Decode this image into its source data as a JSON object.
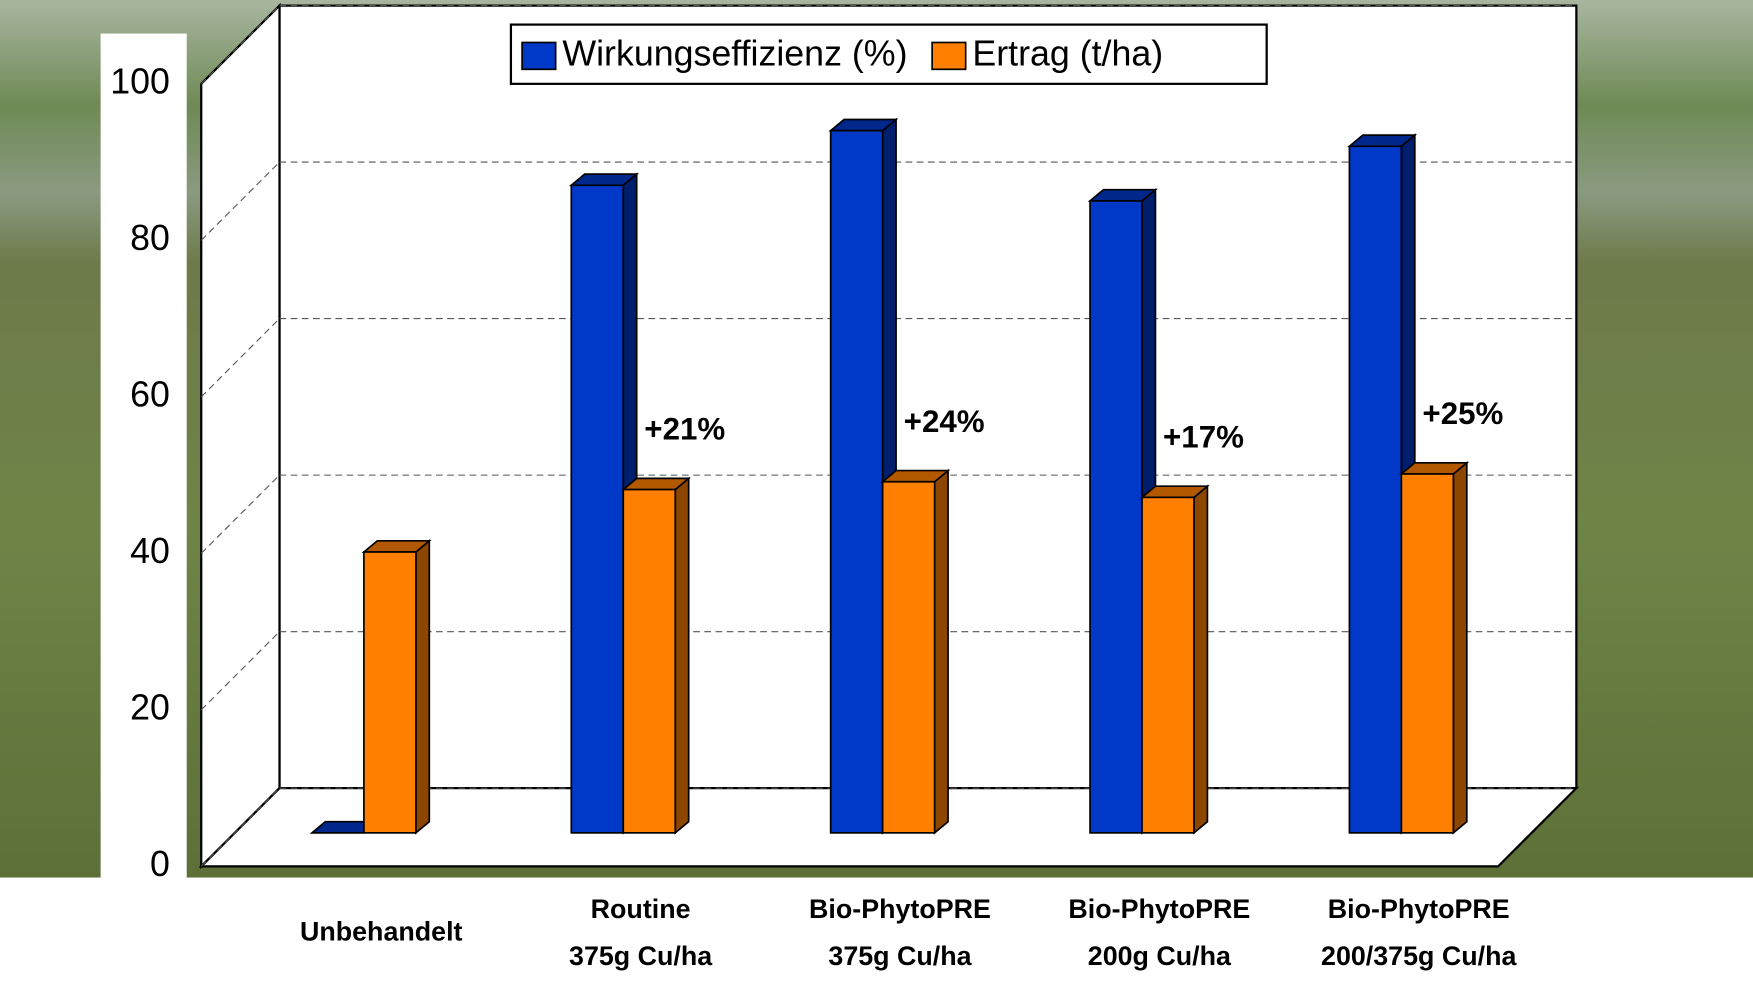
{
  "chart_data": {
    "type": "bar3d",
    "categories": [
      [
        "Unbehandelt"
      ],
      [
        "Routine",
        "375g Cu/ha"
      ],
      [
        "Bio-PhytoPRE",
        "375g Cu/ha"
      ],
      [
        "Bio-PhytoPRE",
        "200g Cu/ha"
      ],
      [
        "Bio-PhytoPRE",
        "200/375g Cu/ha"
      ]
    ],
    "series": [
      {
        "name": "Wirkungseffizienz (%)",
        "color": "#0038c8",
        "values": [
          0,
          83,
          90,
          81,
          88
        ]
      },
      {
        "name": "Ertrag (t/ha)",
        "color": "#ff8000",
        "values": [
          36,
          44,
          45,
          43,
          46
        ]
      }
    ],
    "annotations": [
      null,
      "+21%",
      "+24%",
      "+17%",
      "+25%"
    ],
    "ylim": [
      0,
      100
    ],
    "yticks": [
      0,
      20,
      40,
      60,
      80,
      100
    ],
    "grid": true,
    "legend": "top"
  }
}
